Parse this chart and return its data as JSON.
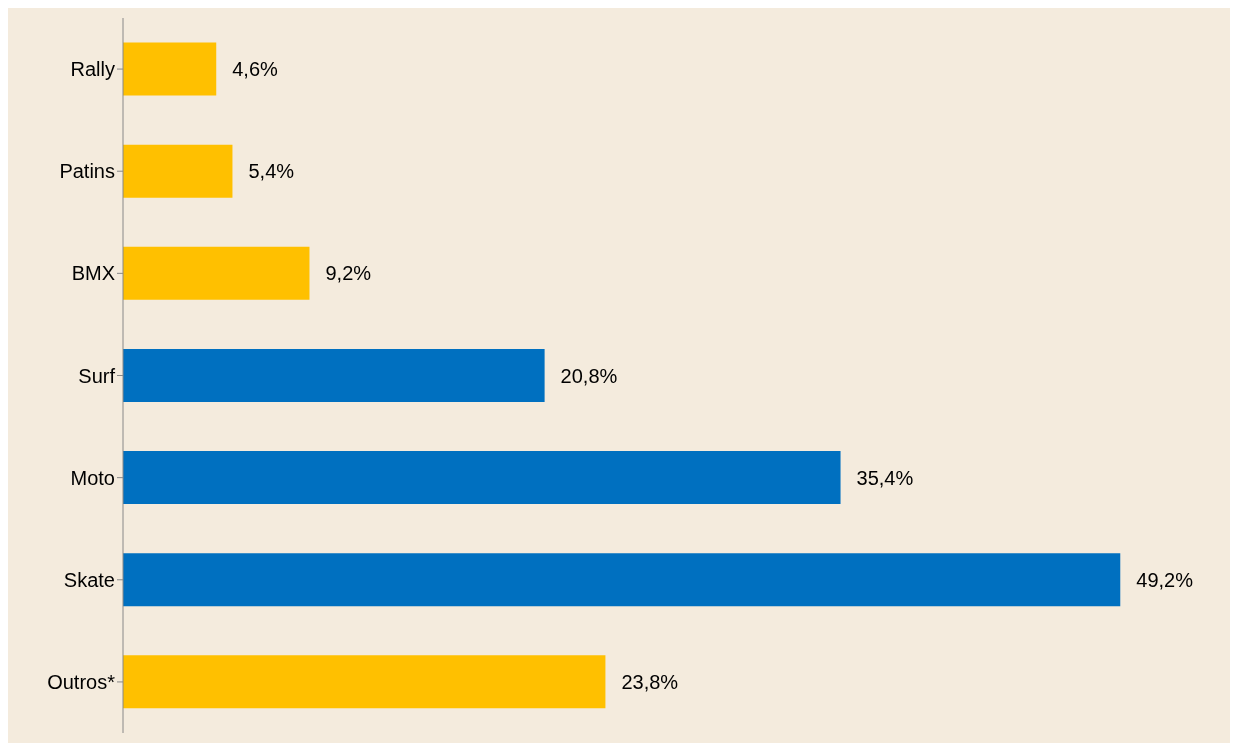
{
  "chart_data": {
    "type": "bar",
    "orientation": "horizontal",
    "categories": [
      "Rally",
      "Patins",
      "BMX",
      "Surf",
      "Moto",
      "Skate",
      "Outros*"
    ],
    "values": [
      4.6,
      5.4,
      9.2,
      20.8,
      35.4,
      49.2,
      23.8
    ],
    "colors": [
      "#ffc000",
      "#ffc000",
      "#ffc000",
      "#0070c0",
      "#0070c0",
      "#0070c0",
      "#ffc000"
    ],
    "value_labels": [
      "4,6%",
      "5,4%",
      "9,2%",
      "20,8%",
      "35,4%",
      "49,2%",
      "23,8%"
    ],
    "grid": false,
    "legend": false
  }
}
